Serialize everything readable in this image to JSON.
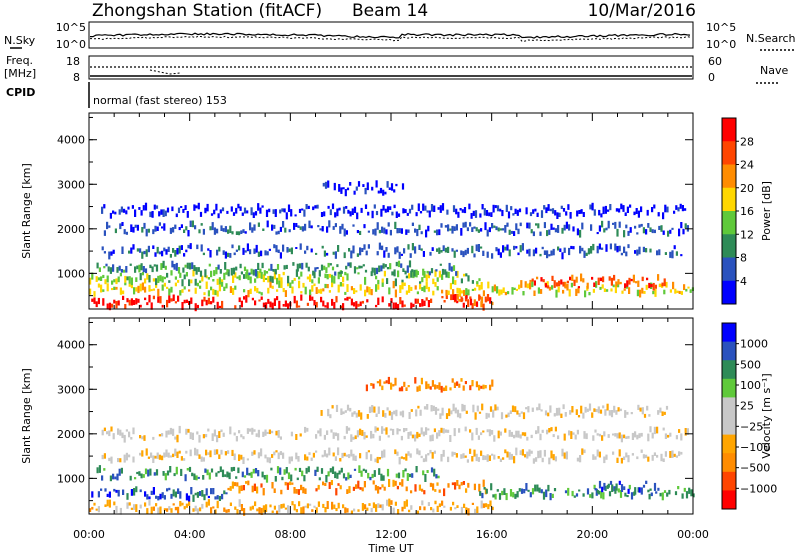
{
  "header": {
    "title": "Zhongshan Station (fitACF)",
    "beam": "Beam 14",
    "date": "10/Mar/2016"
  },
  "status_panels": {
    "nsky_label": "N.Sky",
    "nsearch_label": "N.Search",
    "noise_ticks_left": [
      "10^5",
      "10^0"
    ],
    "noise_ticks_right": [
      "10^5",
      "10^0"
    ],
    "freq_label": "Freq.",
    "freq_unit": "[MHz]",
    "freq_ticks": [
      "18",
      "8"
    ],
    "nave_label": "Nave",
    "nave_ticks": [
      "60",
      "0"
    ],
    "cpid_label": "CPID",
    "cpid_text": "normal (fast stereo) 153"
  },
  "chart_data": [
    {
      "type": "heatmap",
      "title": "",
      "xlabel": "Time UT",
      "ylabel": "Slant Range [km]",
      "x_ticks": [
        "00:00",
        "04:00",
        "08:00",
        "12:00",
        "16:00",
        "20:00",
        "00:00"
      ],
      "xlim_hours": [
        0,
        24
      ],
      "y_ticks": [
        "1000",
        "2000",
        "3000",
        "4000"
      ],
      "ylim": [
        200,
        4600
      ],
      "colorbar": {
        "label": "Power [dB]",
        "ticks": [
          "28",
          "24",
          "20",
          "16",
          "12",
          "8",
          "4"
        ],
        "range": [
          0,
          30
        ],
        "colors": [
          "#0000ff",
          "#2a52be",
          "#2e8b57",
          "#5fc93a",
          "#ffd700",
          "#ff8c00",
          "#ff4500",
          "#ff0000"
        ]
      },
      "echo_bands": [
        {
          "range_km": 350,
          "t_start": 0.0,
          "t_end": 13.8,
          "level": 7
        },
        {
          "range_km": 350,
          "t_start": 14.5,
          "t_end": 16.0,
          "level": 6
        },
        {
          "range_km": 450,
          "t_start": 14.0,
          "t_end": 15.8,
          "level": 6
        },
        {
          "range_km": 650,
          "t_start": 0.0,
          "t_end": 24.0,
          "level": 4
        },
        {
          "range_km": 900,
          "t_start": 0.0,
          "t_end": 15.5,
          "level": 3
        },
        {
          "range_km": 1100,
          "t_start": 0.3,
          "t_end": 14.6,
          "level": 2
        },
        {
          "range_km": 800,
          "t_start": 17.5,
          "t_end": 23.0,
          "level": 6
        },
        {
          "range_km": 1500,
          "t_start": 0.5,
          "t_end": 23.5,
          "level": 1
        },
        {
          "range_km": 2000,
          "t_start": 0.5,
          "t_end": 23.8,
          "level": 1
        },
        {
          "range_km": 2400,
          "t_start": 0.3,
          "t_end": 23.8,
          "level": 0
        },
        {
          "range_km": 2900,
          "t_start": 9.2,
          "t_end": 12.5,
          "level": 0
        }
      ]
    },
    {
      "type": "heatmap",
      "title": "",
      "xlabel": "Time UT",
      "ylabel": "Slant Range [km]",
      "x_ticks": [
        "00:00",
        "04:00",
        "08:00",
        "12:00",
        "16:00",
        "20:00",
        "00:00"
      ],
      "xlim_hours": [
        0,
        24
      ],
      "y_ticks": [
        "1000",
        "2000",
        "3000",
        "4000"
      ],
      "ylim": [
        200,
        4600
      ],
      "colorbar": {
        "label": "Velocity [m s⁻¹]",
        "ticks": [
          "1000",
          "500",
          "100",
          "25",
          "−25",
          "−100",
          "−500",
          "−1000"
        ],
        "range": [
          -1200,
          1200
        ],
        "colors": [
          "#ff0000",
          "#ff4500",
          "#ff8c00",
          "#ffa500",
          "#c8c8c8",
          "#c8c8c8",
          "#5fc93a",
          "#2e8b57",
          "#2a52be",
          "#0000ff"
        ]
      },
      "echo_bands": [
        {
          "range_km": 350,
          "t_start": 0.0,
          "t_end": 16.0,
          "level": 3
        },
        {
          "range_km": 650,
          "t_start": 0.0,
          "t_end": 5.5,
          "level": 8
        },
        {
          "range_km": 800,
          "t_start": 5.5,
          "t_end": 15.8,
          "level": 2
        },
        {
          "range_km": 1100,
          "t_start": 0.3,
          "t_end": 14.0,
          "level": 7
        },
        {
          "range_km": 700,
          "t_start": 15.5,
          "t_end": 24.0,
          "level": 7
        },
        {
          "range_km": 800,
          "t_start": 20.0,
          "t_end": 22.5,
          "level": 8
        },
        {
          "range_km": 1500,
          "t_start": 0.5,
          "t_end": 23.5,
          "level": 4
        },
        {
          "range_km": 2000,
          "t_start": 0.5,
          "t_end": 23.8,
          "level": 4
        },
        {
          "range_km": 2500,
          "t_start": 9.2,
          "t_end": 23.0,
          "level": 4
        },
        {
          "range_km": 3100,
          "t_start": 11.0,
          "t_end": 16.0,
          "level": 2
        }
      ]
    }
  ]
}
